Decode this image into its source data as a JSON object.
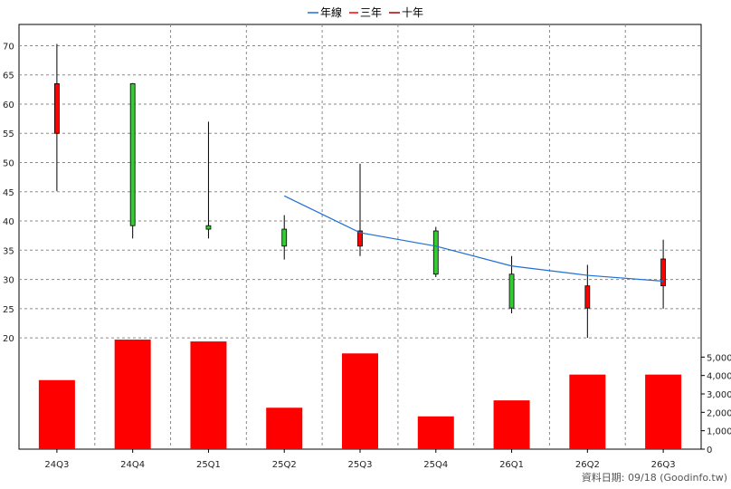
{
  "legend": {
    "items": [
      {
        "label": "年線",
        "color": "#1f6fd6"
      },
      {
        "label": "三年",
        "color": "#ff0000"
      },
      {
        "label": "十年",
        "color": "#b00000"
      }
    ]
  },
  "footer": {
    "text": "資料日期: 09/18  (Goodinfo.tw)"
  },
  "chart_data": {
    "type": "candlestick",
    "categories": [
      "24Q3",
      "24Q4",
      "25Q1",
      "25Q2",
      "25Q3",
      "25Q4",
      "26Q1",
      "26Q2",
      "26Q3"
    ],
    "price_axis": {
      "ylim": [
        18,
        71
      ],
      "ticks": [
        20,
        25,
        30,
        35,
        40,
        45,
        50,
        55,
        60,
        65,
        70
      ]
    },
    "candles": [
      {
        "open": 55.0,
        "high": 70.3,
        "low": 45.1,
        "close": 63.5,
        "color": "#ff0000"
      },
      {
        "open": 63.5,
        "high": 63.6,
        "low": 37.0,
        "close": 39.2,
        "color": "#33cc33"
      },
      {
        "open": 39.2,
        "high": 57.0,
        "low": 37.0,
        "close": 38.6,
        "color": "#33cc33"
      },
      {
        "open": 38.6,
        "high": 41.0,
        "low": 33.4,
        "close": 35.7,
        "color": "#33cc33"
      },
      {
        "open": 35.7,
        "high": 49.8,
        "low": 34.0,
        "close": 38.3,
        "color": "#ff0000"
      },
      {
        "open": 38.3,
        "high": 39.0,
        "low": 30.4,
        "close": 30.9,
        "color": "#33cc33"
      },
      {
        "open": 30.9,
        "high": 34.0,
        "low": 24.2,
        "close": 25.1,
        "color": "#33cc33"
      },
      {
        "open": 25.1,
        "high": 32.5,
        "low": 20.0,
        "close": 28.9,
        "color": "#ff0000"
      },
      {
        "open": 28.9,
        "high": 36.8,
        "low": 25.0,
        "close": 33.5,
        "color": "#ff0000"
      }
    ],
    "series": [
      {
        "name": "年線",
        "color": "#1f6fd6",
        "values": [
          null,
          null,
          null,
          44.3,
          38.0,
          35.7,
          32.3,
          30.7,
          29.7
        ]
      }
    ],
    "volume_axis": {
      "ylim": [
        0,
        6000
      ],
      "ticks": [
        0,
        1000,
        2000,
        3000,
        4000,
        5000
      ],
      "tick_labels": [
        "0",
        "1,000",
        "2,000",
        "3,000",
        "4,000",
        "5,000"
      ]
    },
    "volume": {
      "color": "#ff0000",
      "values": [
        3750,
        5950,
        5850,
        2250,
        5200,
        1780,
        2650,
        4050,
        4050
      ]
    },
    "grid": true
  }
}
